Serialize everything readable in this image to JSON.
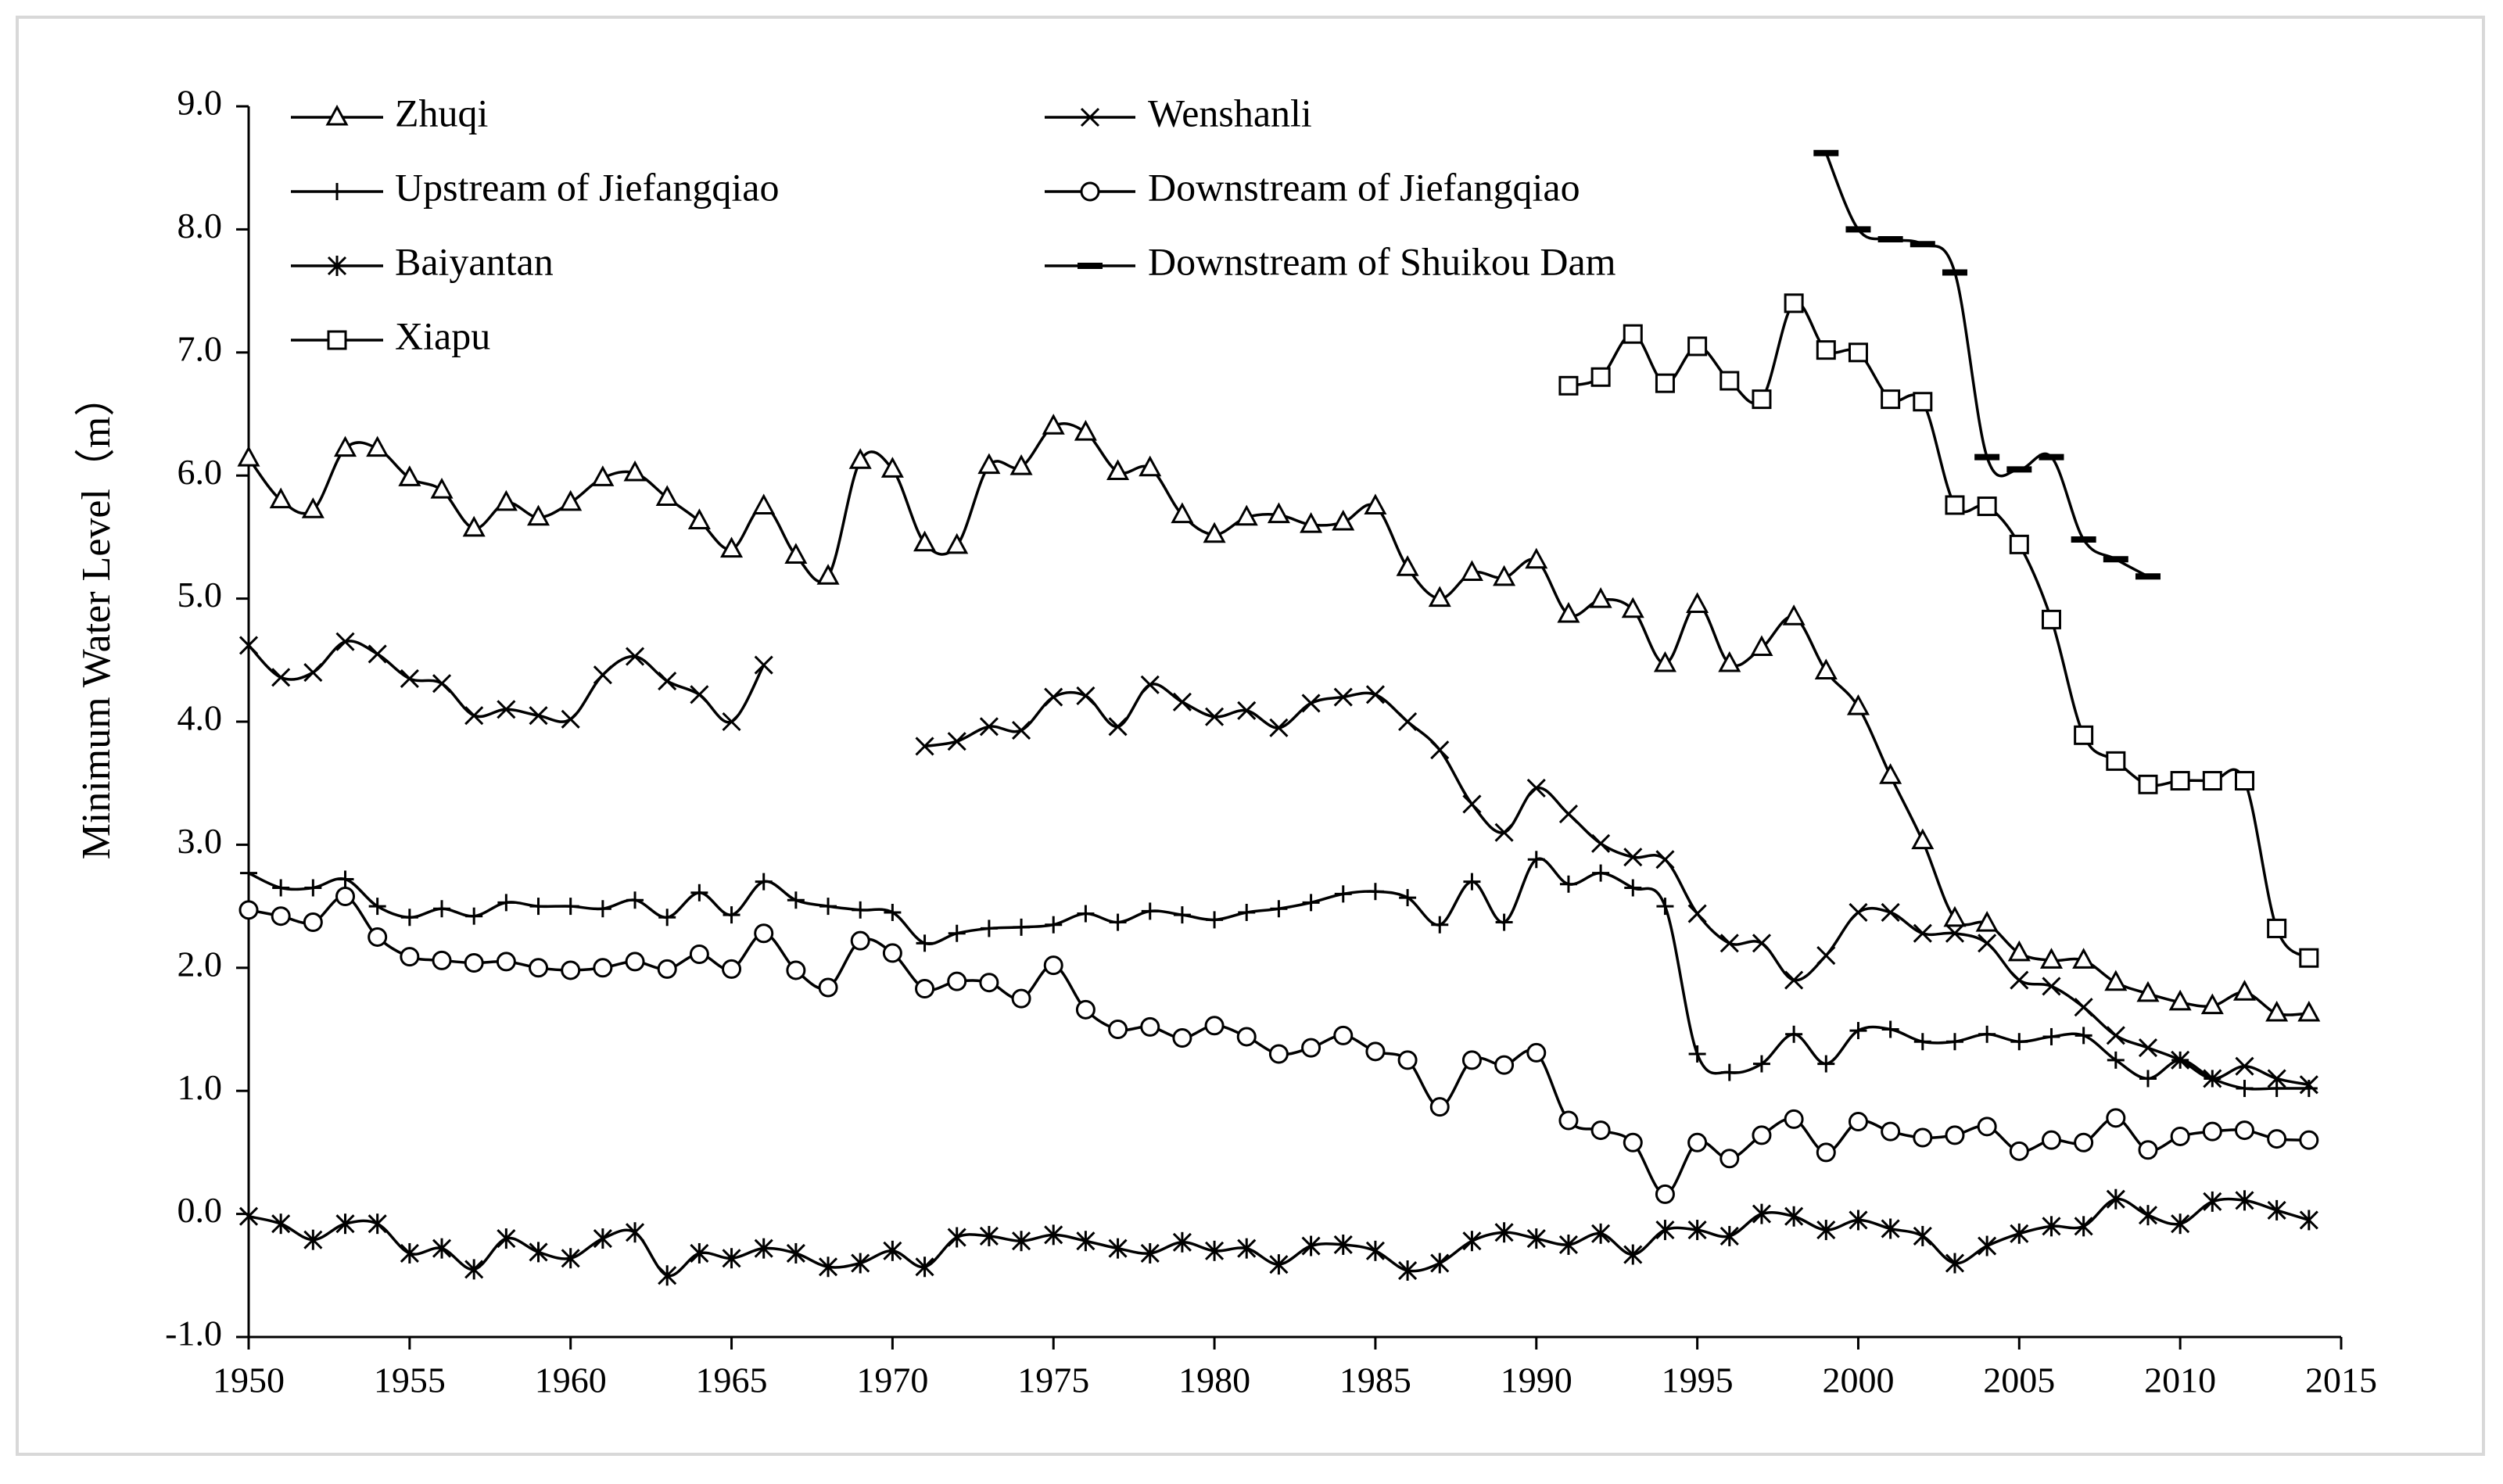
{
  "chart_data": {
    "type": "line",
    "title": "",
    "xlabel": "",
    "ylabel": "Minimum Water Level（m）",
    "xlim": [
      1950,
      2015
    ],
    "ylim": [
      -1.0,
      9.0
    ],
    "x_ticks": [
      1950,
      1955,
      1960,
      1965,
      1970,
      1975,
      1980,
      1985,
      1990,
      1995,
      2000,
      2005,
      2010,
      2015
    ],
    "y_ticks": [
      -1.0,
      0.0,
      1.0,
      2.0,
      3.0,
      4.0,
      5.0,
      6.0,
      7.0,
      8.0,
      9.0
    ],
    "x_tick_labels": [
      "1950",
      "1955",
      "1960",
      "1965",
      "1970",
      "1975",
      "1980",
      "1985",
      "1990",
      "1995",
      "2000",
      "2005",
      "2010",
      "2015"
    ],
    "y_tick_labels": [
      "-1.0",
      "0.0",
      "1.0",
      "2.0",
      "3.0",
      "4.0",
      "5.0",
      "6.0",
      "7.0",
      "8.0",
      "9.0"
    ],
    "grid": false,
    "legend_position": "top-left, two columns",
    "series": [
      {
        "name": "Zhuqi",
        "marker": "triangle",
        "color": "#000000",
        "x_start": 1950,
        "values": [
          6.14,
          5.8,
          5.72,
          6.22,
          6.22,
          5.98,
          5.88,
          5.57,
          5.78,
          5.66,
          5.78,
          5.98,
          6.02,
          5.82,
          5.63,
          5.4,
          5.75,
          5.35,
          5.18,
          6.12,
          6.05,
          5.45,
          5.43,
          6.08,
          6.07,
          6.4,
          6.35,
          6.03,
          6.06,
          5.68,
          5.52,
          5.66,
          5.68,
          5.6,
          5.62,
          5.75,
          5.25,
          5.0,
          5.21,
          5.17,
          5.31,
          4.87,
          4.99,
          4.91,
          4.47,
          4.95,
          4.47,
          4.6,
          4.85,
          4.41,
          4.12,
          3.56,
          3.03,
          2.4,
          2.36,
          2.12,
          2.06,
          2.06,
          1.88,
          1.79,
          1.72,
          1.69,
          1.8,
          1.63,
          1.63
        ]
      },
      {
        "name": "Wenshanli",
        "marker": "x",
        "color": "#000000",
        "x_start": 1950,
        "values": [
          4.62,
          4.36,
          4.4,
          4.65,
          4.55,
          4.35,
          4.31,
          4.05,
          4.1,
          4.05,
          4.02,
          4.38,
          4.53,
          4.33,
          4.22,
          4.0,
          4.46,
          null,
          null,
          null,
          null,
          3.8,
          3.84,
          3.96,
          3.93,
          4.2,
          4.21,
          3.96,
          4.3,
          4.16,
          4.04,
          4.09,
          3.95,
          4.15,
          4.2,
          4.22,
          4.0,
          3.77,
          3.33,
          3.1,
          3.46,
          3.25,
          3.01,
          2.9,
          2.88,
          2.44,
          2.2,
          2.2,
          1.9,
          2.1,
          2.45,
          2.45,
          2.28,
          2.28,
          2.2,
          1.9,
          1.85,
          1.68,
          1.45,
          1.35,
          1.25,
          1.1,
          1.2,
          1.1,
          1.05
        ]
      },
      {
        "name": "Upstream of Jiefangqiao",
        "marker": "plus",
        "color": "#000000",
        "x_start": 1950,
        "values": [
          2.77,
          2.65,
          2.65,
          2.72,
          2.5,
          2.41,
          2.48,
          2.42,
          2.53,
          2.5,
          2.5,
          2.48,
          2.55,
          2.41,
          2.61,
          2.43,
          2.7,
          2.55,
          2.5,
          2.47,
          2.45,
          2.2,
          2.28,
          2.32,
          2.33,
          2.35,
          2.44,
          2.37,
          2.46,
          2.43,
          2.39,
          2.45,
          2.48,
          2.53,
          2.6,
          2.62,
          2.57,
          2.35,
          2.7,
          2.37,
          2.88,
          2.68,
          2.77,
          2.65,
          2.5,
          1.3,
          1.15,
          1.22,
          1.46,
          1.22,
          1.49,
          1.5,
          1.4,
          1.4,
          1.46,
          1.4,
          1.44,
          1.45,
          1.25,
          1.1,
          1.25,
          1.1,
          1.02,
          1.02,
          1.02
        ]
      },
      {
        "name": "Downstream of Jiefangqiao",
        "marker": "circle",
        "color": "#000000",
        "x_start": 1950,
        "values": [
          2.47,
          2.42,
          2.37,
          2.58,
          2.25,
          2.09,
          2.06,
          2.04,
          2.05,
          2.0,
          1.98,
          2.0,
          2.05,
          1.99,
          2.11,
          1.99,
          2.28,
          1.98,
          1.84,
          2.22,
          2.12,
          1.83,
          1.89,
          1.88,
          1.75,
          2.02,
          1.66,
          1.5,
          1.52,
          1.43,
          1.53,
          1.44,
          1.3,
          1.35,
          1.45,
          1.32,
          1.25,
          0.87,
          1.25,
          1.21,
          1.31,
          0.76,
          0.68,
          0.58,
          0.16,
          0.58,
          0.45,
          0.64,
          0.77,
          0.5,
          0.75,
          0.67,
          0.62,
          0.64,
          0.71,
          0.51,
          0.6,
          0.58,
          0.78,
          0.52,
          0.63,
          0.67,
          0.68,
          0.61,
          0.6
        ]
      },
      {
        "name": "Baiyantan",
        "marker": "asterisk",
        "color": "#000000",
        "x_start": 1950,
        "values": [
          -0.02,
          -0.08,
          -0.21,
          -0.08,
          -0.08,
          -0.32,
          -0.28,
          -0.45,
          -0.2,
          -0.31,
          -0.36,
          -0.2,
          -0.15,
          -0.5,
          -0.32,
          -0.36,
          -0.28,
          -0.32,
          -0.43,
          -0.4,
          -0.3,
          -0.43,
          -0.19,
          -0.18,
          -0.22,
          -0.17,
          -0.22,
          -0.28,
          -0.32,
          -0.23,
          -0.3,
          -0.28,
          -0.41,
          -0.26,
          -0.25,
          -0.3,
          -0.46,
          -0.4,
          -0.22,
          -0.15,
          -0.2,
          -0.25,
          -0.16,
          -0.33,
          -0.13,
          -0.13,
          -0.18,
          0.0,
          -0.02,
          -0.13,
          -0.05,
          -0.12,
          -0.18,
          -0.4,
          -0.26,
          -0.16,
          -0.1,
          -0.1,
          0.12,
          -0.01,
          -0.08,
          0.1,
          0.11,
          0.03,
          -0.05
        ]
      },
      {
        "name": "Downstream of Shuikou Dam",
        "marker": "dash",
        "color": "#000000",
        "x_start": 1999,
        "values": [
          8.62,
          8.0,
          7.92,
          7.88,
          7.65,
          6.15,
          6.05,
          6.15,
          5.48,
          5.32,
          5.18
        ]
      },
      {
        "name": "Xiapu",
        "marker": "square",
        "color": "#000000",
        "x_start": 1991,
        "values": [
          6.73,
          6.8,
          7.15,
          6.75,
          7.05,
          6.77,
          6.62,
          7.4,
          7.02,
          7.0,
          6.62,
          6.6,
          5.76,
          5.75,
          5.44,
          4.83,
          3.89,
          3.68,
          3.49,
          3.52,
          3.52,
          3.52,
          2.32,
          2.08
        ]
      }
    ]
  }
}
